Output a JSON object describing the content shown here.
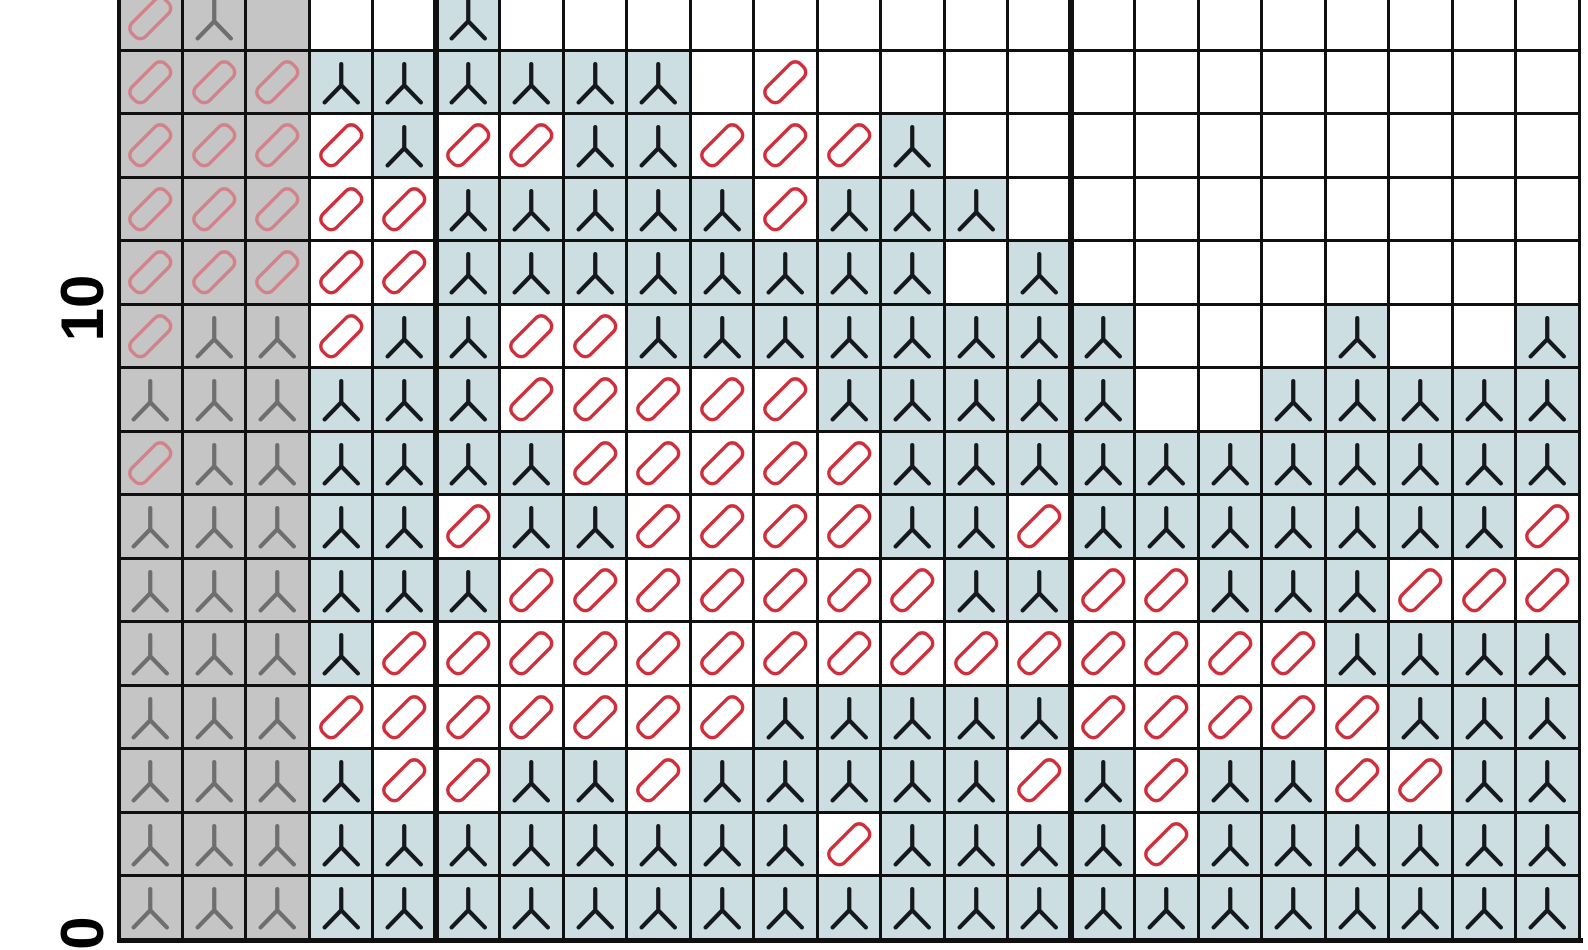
{
  "chart_data": {
    "type": "heatmap",
    "title": "",
    "description": "Knitting-style stitch symbol chart: 23 visible columns x 15 visible rows (top row cut off). Grey cells are outside the pattern repeat; light-blue cells carry a black three-pronged stitch symbol; white cells are empty or carry a red diagonal capsule (slash) symbol.",
    "columns": 23,
    "rows": 15,
    "grey_leading_columns": 3,
    "bold_vertical_gridlines_after_columns": [
      5,
      15
    ],
    "row_axis_labels": [
      {
        "text": "10",
        "gridlines_from_bottom": 10
      },
      {
        "text": "0",
        "gridlines_from_bottom": 0
      }
    ],
    "cell_codes": {
      "y": "light-blue cell with black Y-stitch symbol",
      "s": "white cell with red diagonal capsule slash symbol",
      "w": "empty white cell",
      "G": "grey cell with grey Y-stitch symbol",
      "R": "grey cell with faded red diagonal capsule slash symbol",
      "E": "empty grey cell"
    },
    "grid": [
      "RGEwwywwwwwwwwwwwwwwwww",
      "RRRyyyyyywswwwwwwwwwwww",
      "RRRsyssyysssywwwwwwwwww",
      "RRRssyyyyysyyywwwwwwwww",
      "RRRssyyyyyyyywywwwwwwww",
      "RGGsyyssyyyyyyyywwwywwy",
      "GGGyyysssssyyyyywwyyyyy",
      "RGGyyyysssssyyyyyyyyyyy",
      "GGGyysyyssssyysyyyyyyys",
      "GGGyyysssssssyyssyyysss",
      "GGGysssssssssssssssyyyy",
      "GGGsssssssyyyyysssssyyy",
      "GGGyssyysyyyyysysyyssyy",
      "GGGyyyyyyyysyyyysyyyyyy",
      "GGGyyyyyyyyyyyyyyyyyyyy"
    ],
    "legend_position": "none",
    "grid_on": true
  },
  "colors": {
    "grid_line": "#101010",
    "cell_grey": "#c5c5c6",
    "cell_blue": "#cddee2",
    "cell_white": "#ffffff",
    "symbol_black": "#16191b",
    "symbol_grey": "#6e6e6e",
    "symbol_red": "#cf2e3a",
    "symbol_red_faded": "#d28289",
    "label_color": "#000000"
  }
}
